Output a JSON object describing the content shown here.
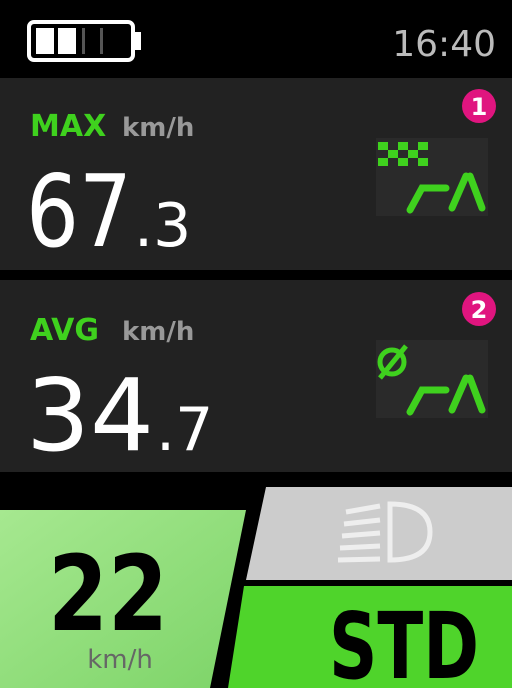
{
  "status": {
    "time": "16:40"
  },
  "panels": [
    {
      "label": "MAX",
      "unit": "km/h",
      "value": "67",
      "decimal": ".3",
      "badge": "1"
    },
    {
      "label": "AVG",
      "unit": "km/h",
      "value": "34",
      "decimal": ".7",
      "badge": "2"
    }
  ],
  "speed": {
    "value": "22",
    "unit": "km/h"
  },
  "mode": "STD"
}
